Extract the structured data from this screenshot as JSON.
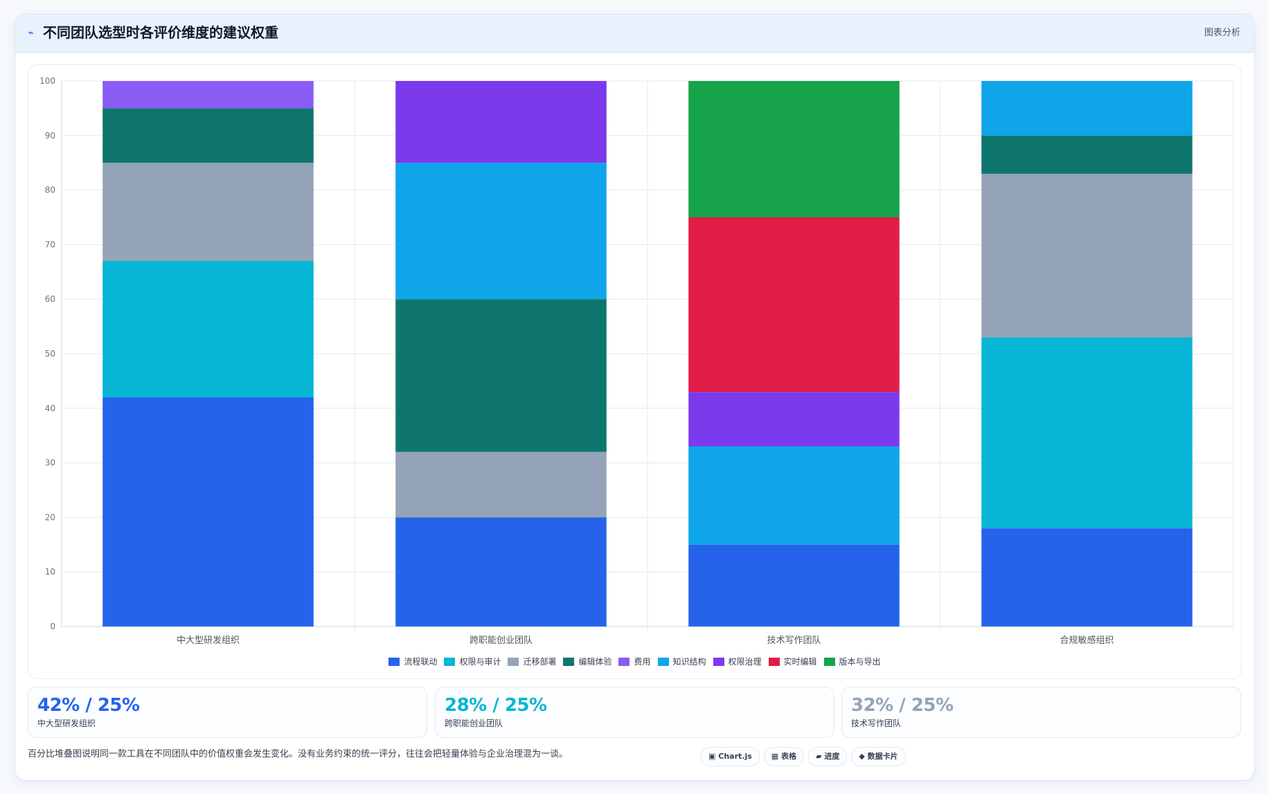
{
  "header": {
    "icon": "⌁",
    "title": "不同团队选型时各评价维度的建议权重",
    "link": "图表分析"
  },
  "chart_data": {
    "type": "bar",
    "stacked": true,
    "categories": [
      "中大型研发组织",
      "跨职能创业团队",
      "技术写作团队",
      "合规敏感组织"
    ],
    "ylim": [
      0,
      100
    ],
    "yticks": [
      0,
      10,
      20,
      30,
      40,
      50,
      60,
      70,
      80,
      90,
      100
    ],
    "grid": true,
    "legend_position": "bottom",
    "series": [
      {
        "name": "流程联动",
        "color": "#2563eb",
        "values": [
          42,
          20,
          15,
          18
        ]
      },
      {
        "name": "权限与审计",
        "color": "#06b6d4",
        "values": [
          25,
          0,
          0,
          35
        ]
      },
      {
        "name": "迁移部署",
        "color": "#94a3b8",
        "values": [
          18,
          12,
          0,
          30
        ]
      },
      {
        "name": "编辑体验",
        "color": "#0f766e",
        "values": [
          10,
          28,
          0,
          7
        ]
      },
      {
        "name": "费用",
        "color": "#8b5cf6",
        "values": [
          5,
          0,
          0,
          0
        ]
      },
      {
        "name": "知识结构",
        "color": "#0ea5e9",
        "values": [
          0,
          25,
          18,
          10
        ]
      },
      {
        "name": "权限治理",
        "color": "#7c3aed",
        "values": [
          0,
          15,
          10,
          0
        ]
      },
      {
        "name": "实时编辑",
        "color": "#e11d48",
        "values": [
          0,
          0,
          32,
          0
        ]
      },
      {
        "name": "版本与导出",
        "color": "#16a34a",
        "values": [
          0,
          0,
          25,
          0
        ]
      }
    ]
  },
  "stats": [
    {
      "value": "42% / 25%",
      "label": "中大型研发组织",
      "color": "#2563eb"
    },
    {
      "value": "28% / 25%",
      "label": "跨职能创业团队",
      "color": "#06b6d4"
    },
    {
      "value": "32% / 25%",
      "label": "技术写作团队",
      "color": "#94a3b8"
    }
  ],
  "footer": {
    "note": "百分比堆叠图说明同一款工具在不同团队中的价值权重会发生变化。没有业务约束的统一评分，往往会把轻量体验与企业治理混为一谈。"
  },
  "chips": [
    {
      "icon": "▣",
      "label": "Chart.js",
      "icon_name": "chart-icon"
    },
    {
      "icon": "▦",
      "label": "表格",
      "icon_name": "table-icon"
    },
    {
      "icon": "▰",
      "label": "进度",
      "icon_name": "progress-icon"
    },
    {
      "icon": "◆",
      "label": "数据卡片",
      "icon_name": "diamond-icon"
    }
  ]
}
